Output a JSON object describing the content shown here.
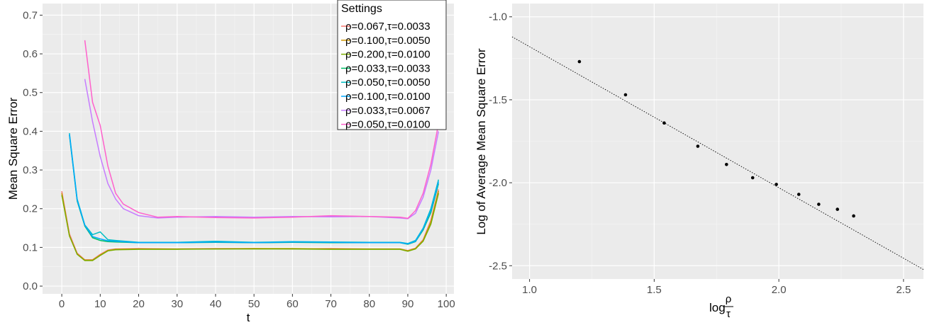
{
  "chart_data": [
    {
      "type": "line",
      "xlabel": "t",
      "ylabel": "Mean Square Error",
      "xlim": [
        -5,
        102
      ],
      "ylim": [
        -0.02,
        0.73
      ],
      "x_ticks": [
        0,
        10,
        20,
        30,
        40,
        50,
        60,
        70,
        80,
        90,
        100
      ],
      "y_ticks": [
        0.0,
        0.1,
        0.2,
        0.3,
        0.4,
        0.5,
        0.6,
        0.7
      ],
      "y_tick_labels": [
        "0.0",
        "0.1",
        "0.2",
        "0.3",
        "0.4",
        "0.5",
        "0.6",
        "0.7"
      ],
      "grid": true,
      "legend": {
        "title": "Settings",
        "position": "top-right"
      },
      "series": [
        {
          "name": "ρ=0.067,τ=0.0033",
          "color": "#F8766D",
          "x": [
            0,
            2,
            4,
            6,
            8,
            10,
            12,
            14,
            20,
            30,
            40,
            50,
            60,
            70,
            80,
            88,
            90,
            92,
            94,
            96,
            98
          ],
          "y": [
            0.245,
            0.135,
            0.085,
            0.068,
            0.068,
            0.082,
            0.093,
            0.096,
            0.097,
            0.096,
            0.097,
            0.097,
            0.096,
            0.097,
            0.096,
            0.096,
            0.092,
            0.098,
            0.12,
            0.17,
            0.25
          ]
        },
        {
          "name": "ρ=0.100,τ=0.0050",
          "color": "#CD9600",
          "x": [
            0,
            2,
            4,
            6,
            8,
            10,
            12,
            14,
            20,
            30,
            40,
            50,
            60,
            70,
            80,
            88,
            90,
            92,
            94,
            96,
            98
          ],
          "y": [
            0.24,
            0.13,
            0.083,
            0.067,
            0.067,
            0.08,
            0.092,
            0.095,
            0.096,
            0.096,
            0.096,
            0.097,
            0.097,
            0.096,
            0.096,
            0.096,
            0.091,
            0.097,
            0.118,
            0.165,
            0.245
          ]
        },
        {
          "name": "ρ=0.200,τ=0.0100",
          "color": "#7CAE00",
          "x": [
            0,
            2,
            4,
            6,
            8,
            10,
            12,
            14,
            20,
            30,
            40,
            50,
            60,
            70,
            80,
            88,
            90,
            92,
            94,
            96,
            98
          ],
          "y": [
            0.235,
            0.13,
            0.082,
            0.066,
            0.066,
            0.079,
            0.091,
            0.094,
            0.095,
            0.095,
            0.096,
            0.096,
            0.096,
            0.095,
            0.095,
            0.095,
            0.09,
            0.096,
            0.116,
            0.16,
            0.24
          ]
        },
        {
          "name": "ρ=0.033,τ=0.0033",
          "color": "#00BE67",
          "x": [
            2,
            4,
            6,
            8,
            10,
            12,
            14,
            20,
            30,
            40,
            50,
            60,
            70,
            80,
            88,
            90,
            92,
            94,
            96,
            98
          ],
          "y": [
            0.39,
            0.22,
            0.155,
            0.125,
            0.118,
            0.115,
            0.114,
            0.112,
            0.112,
            0.113,
            0.112,
            0.113,
            0.112,
            0.112,
            0.112,
            0.108,
            0.115,
            0.145,
            0.19,
            0.265
          ]
        },
        {
          "name": "ρ=0.050,τ=0.0050",
          "color": "#00BFC4",
          "x": [
            2,
            4,
            6,
            8,
            10,
            12,
            14,
            20,
            30,
            40,
            50,
            60,
            70,
            80,
            88,
            90,
            92,
            94,
            96,
            98
          ],
          "y": [
            0.395,
            0.225,
            0.158,
            0.133,
            0.14,
            0.12,
            0.118,
            0.113,
            0.113,
            0.116,
            0.113,
            0.115,
            0.114,
            0.113,
            0.113,
            0.11,
            0.118,
            0.15,
            0.2,
            0.275
          ]
        },
        {
          "name": "ρ=0.100,τ=0.0100",
          "color": "#00A9FF",
          "x": [
            2,
            4,
            6,
            8,
            10,
            12,
            14,
            20,
            30,
            40,
            50,
            60,
            70,
            80,
            88,
            90,
            92,
            94,
            96,
            98
          ],
          "y": [
            0.392,
            0.222,
            0.157,
            0.128,
            0.122,
            0.117,
            0.116,
            0.112,
            0.112,
            0.114,
            0.112,
            0.114,
            0.113,
            0.112,
            0.112,
            0.109,
            0.116,
            0.148,
            0.195,
            0.27
          ]
        },
        {
          "name": "ρ=0.033,τ=0.0067",
          "color": "#C77CFF",
          "x": [
            6,
            8,
            10,
            12,
            14,
            16,
            20,
            25,
            30,
            40,
            50,
            60,
            70,
            80,
            88,
            90,
            92,
            94,
            96,
            98
          ],
          "y": [
            0.535,
            0.425,
            0.335,
            0.265,
            0.225,
            0.2,
            0.182,
            0.176,
            0.178,
            0.18,
            0.178,
            0.18,
            0.179,
            0.18,
            0.176,
            0.174,
            0.188,
            0.23,
            0.3,
            0.4
          ]
        },
        {
          "name": "ρ=0.050,τ=0.0100",
          "color": "#FF61CC",
          "x": [
            6,
            8,
            10,
            12,
            14,
            16,
            20,
            25,
            30,
            40,
            50,
            60,
            70,
            80,
            88,
            90,
            92,
            94,
            96,
            98
          ],
          "y": [
            0.635,
            0.475,
            0.415,
            0.31,
            0.24,
            0.212,
            0.19,
            0.178,
            0.18,
            0.177,
            0.176,
            0.178,
            0.182,
            0.18,
            0.178,
            0.175,
            0.195,
            0.24,
            0.315,
            0.42
          ]
        }
      ]
    },
    {
      "type": "scatter",
      "xlabel": "log",
      "xlabel_fraction": {
        "numerator": "ρ",
        "denominator": "τ"
      },
      "ylabel": "Log of Average Mean Square Error",
      "xlim": [
        0.93,
        2.58
      ],
      "ylim": [
        -2.58,
        -0.92
      ],
      "x_ticks": [
        1.0,
        1.5,
        2.0,
        2.5
      ],
      "x_tick_labels": [
        "1.0",
        "1.5",
        "2.0",
        "2.5"
      ],
      "y_ticks": [
        -2.5,
        -2.0,
        -1.5,
        -1.0
      ],
      "y_tick_labels": [
        "-2.5",
        "-2.0",
        "-1.5",
        "-1.0"
      ],
      "grid": true,
      "points": [
        {
          "x": 1.2,
          "y": -1.27
        },
        {
          "x": 1.385,
          "y": -1.47
        },
        {
          "x": 1.54,
          "y": -1.64
        },
        {
          "x": 1.675,
          "y": -1.78
        },
        {
          "x": 1.79,
          "y": -1.89
        },
        {
          "x": 1.895,
          "y": -1.97
        },
        {
          "x": 1.99,
          "y": -2.01
        },
        {
          "x": 2.08,
          "y": -2.07
        },
        {
          "x": 2.16,
          "y": -2.13
        },
        {
          "x": 2.235,
          "y": -2.16
        },
        {
          "x": 2.3,
          "y": -2.2
        }
      ],
      "fit_line": {
        "slope": -0.85,
        "intercept": -0.33,
        "style": "dotted"
      }
    }
  ]
}
